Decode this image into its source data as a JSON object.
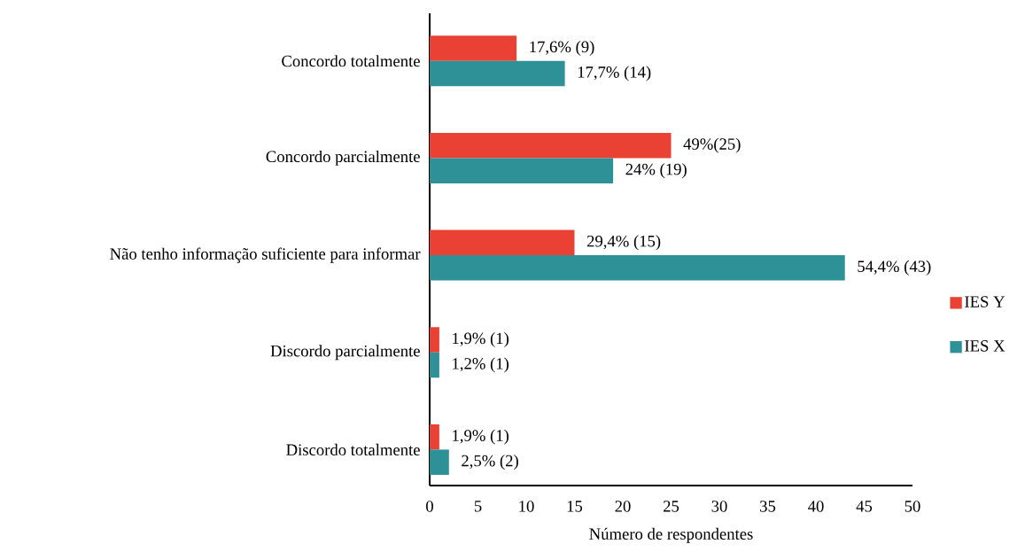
{
  "chart_data": {
    "type": "bar",
    "orientation": "horizontal",
    "xlabel": "Número de respondentes",
    "categories": [
      "Concordo totalmente",
      "Concordo parcialmente",
      "Não tenho informação suficiente para informar",
      "Discordo parcialmente",
      "Discordo totalmente"
    ],
    "series": [
      {
        "name": "IES Y",
        "color": "#e94235",
        "values": [
          9,
          25,
          15,
          1,
          1
        ],
        "value_labels": [
          "17,6% (9)",
          "49%(25)",
          "29,4% (15)",
          "1,9% (1)",
          "1,9% (1)"
        ]
      },
      {
        "name": "IES X",
        "color": "#2e9198",
        "values": [
          14,
          19,
          43,
          1,
          2
        ],
        "value_labels": [
          "17,7% (14)",
          "24% (19)",
          "54,4% (43)",
          "1,2% (1)",
          "2,5% (2)"
        ]
      }
    ],
    "xlim": [
      0,
      50
    ],
    "xticks": [
      0,
      5,
      10,
      15,
      20,
      25,
      30,
      35,
      40,
      45,
      50
    ],
    "legend": "right"
  }
}
